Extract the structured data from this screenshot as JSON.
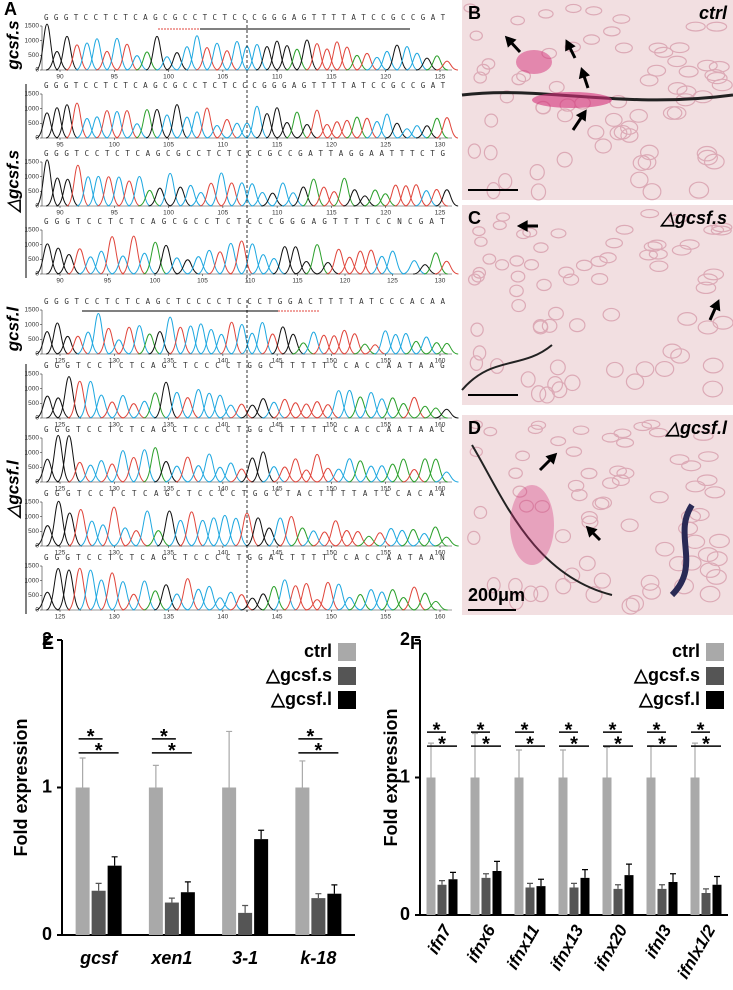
{
  "panel_a": {
    "label": "A",
    "yticks": [
      0,
      500,
      1000,
      1500
    ],
    "groups": [
      {
        "name": "gcsf.s",
        "traces": [
          {
            "sequence": "GGGTCCTCTCAGCGCCTCTCCCGGGAGTTTTATCCGCCGAT",
            "xticks": [
              90,
              95,
              100,
              105,
              110,
              115,
              120,
              125
            ]
          }
        ]
      },
      {
        "name": "△gcsf.s",
        "traces": [
          {
            "sequence": "GGGTCCTCTCAGCGCCTCTCCCGGGAGTTTTATCCGCCGAT",
            "xticks": [
              95,
              100,
              105,
              110,
              115,
              120,
              125,
              130
            ]
          },
          {
            "sequence": "GGGTCCTCTCAGCGCCTCTCCCGCCGATTAGGAATTTCTG",
            "xticks": [
              90,
              95,
              100,
              105,
              110,
              115,
              120,
              125
            ]
          },
          {
            "sequence": "GGGTCCTCTCAGCGCCTCTCCCGGGAGTTTTCCNCGAT",
            "xticks": [
              90,
              95,
              100,
              105,
              110,
              115,
              120,
              125,
              130
            ]
          }
        ]
      },
      {
        "name": "gcsf.l",
        "traces": [
          {
            "sequence": "GGGTCCTCTCAGCTCCCCTCCCTGGACTTTTATCCCACAA",
            "xticks": [
              125,
              130,
              135,
              140,
              145,
              150,
              155,
              160
            ]
          }
        ]
      },
      {
        "name": "△gcsf.l",
        "traces": [
          {
            "sequence": "GGGTCCTCTCAGCTCCCCTGGCTTTTTCCACCAATAAG",
            "xticks": [
              125,
              130,
              135,
              140,
              145,
              150,
              155,
              160
            ]
          },
          {
            "sequence": "GGGTCCTCTCAGCTCCCCTGGCTTTTTCCACCAATAAC",
            "xticks": [
              125,
              130,
              135,
              140,
              145,
              150,
              155,
              160
            ]
          },
          {
            "sequence": "GGGTCCTCTCAGCTCCCCTGGCTACTTTTATCCACAA",
            "xticks": [
              125,
              130,
              135,
              140,
              145,
              150,
              155,
              160
            ]
          },
          {
            "sequence": "GGGTCCTCTCAGCTCCCCTGGACTTTTCCACCAATAAN",
            "xticks": [
              125,
              130,
              135,
              140,
              145,
              150,
              155,
              160
            ]
          }
        ]
      }
    ]
  },
  "panel_b": {
    "label": "B",
    "caption": "ctrl"
  },
  "panel_c": {
    "label": "C",
    "caption": "△gcsf.s"
  },
  "panel_d": {
    "label": "D",
    "caption": "△gcsf.l",
    "scale_bar": "200μm"
  },
  "chart_data": [
    {
      "type": "bar",
      "label": "E",
      "y_label": "Fold expression",
      "categories": [
        "gcsf",
        "xen1",
        "3-1",
        "k-18"
      ],
      "series": [
        {
          "name": "ctrl",
          "color": "#a9a9a9",
          "values": [
            1,
            1,
            1,
            1
          ],
          "errors": [
            0.2,
            0.15,
            0.38,
            0.18
          ]
        },
        {
          "name": "△gcsf.s",
          "color": "#555555",
          "values": [
            0.3,
            0.22,
            0.15,
            0.25
          ],
          "errors": [
            0.05,
            0.03,
            0.05,
            0.03
          ],
          "significance_labels": [
            "*",
            "*",
            null,
            "*"
          ]
        },
        {
          "name": "△gcsf.l",
          "color": "#000000",
          "values": [
            0.47,
            0.29,
            0.65,
            0.28
          ],
          "errors": [
            0.06,
            0.07,
            0.06,
            0.06
          ],
          "significance_labels": [
            "*",
            "*",
            null,
            "*"
          ]
        }
      ],
      "ylim": [
        0,
        2
      ],
      "yticks": [
        0,
        1,
        2
      ]
    },
    {
      "type": "bar",
      "label": "F",
      "y_label": "Fold expression",
      "categories": [
        "ifn7",
        "ifnx6",
        "ifnx11",
        "ifnx13",
        "ifnx20",
        "ifnl3",
        "ifnlx1/2"
      ],
      "series": [
        {
          "name": "ctrl",
          "color": "#a9a9a9",
          "values": [
            1,
            1,
            1,
            1,
            1,
            1,
            1
          ],
          "errors": [
            0.25,
            0.32,
            0.2,
            0.2,
            0.22,
            0.23,
            0.25
          ]
        },
        {
          "name": "△gcsf.s",
          "color": "#555555",
          "values": [
            0.22,
            0.27,
            0.2,
            0.2,
            0.19,
            0.19,
            0.16
          ],
          "errors": [
            0.03,
            0.03,
            0.03,
            0.03,
            0.03,
            0.03,
            0.03
          ],
          "significance_labels": [
            "*",
            "*",
            "*",
            "*",
            "*",
            "*",
            "*"
          ]
        },
        {
          "name": "△gcsf.l",
          "color": "#000000",
          "values": [
            0.26,
            0.32,
            0.21,
            0.27,
            0.29,
            0.24,
            0.22
          ],
          "errors": [
            0.05,
            0.07,
            0.05,
            0.06,
            0.08,
            0.06,
            0.06
          ],
          "significance_labels": [
            "*",
            "*",
            "*",
            "*",
            "*",
            "*",
            "*"
          ]
        }
      ],
      "ylim": [
        0,
        2
      ],
      "yticks": [
        0,
        1,
        2
      ]
    }
  ]
}
